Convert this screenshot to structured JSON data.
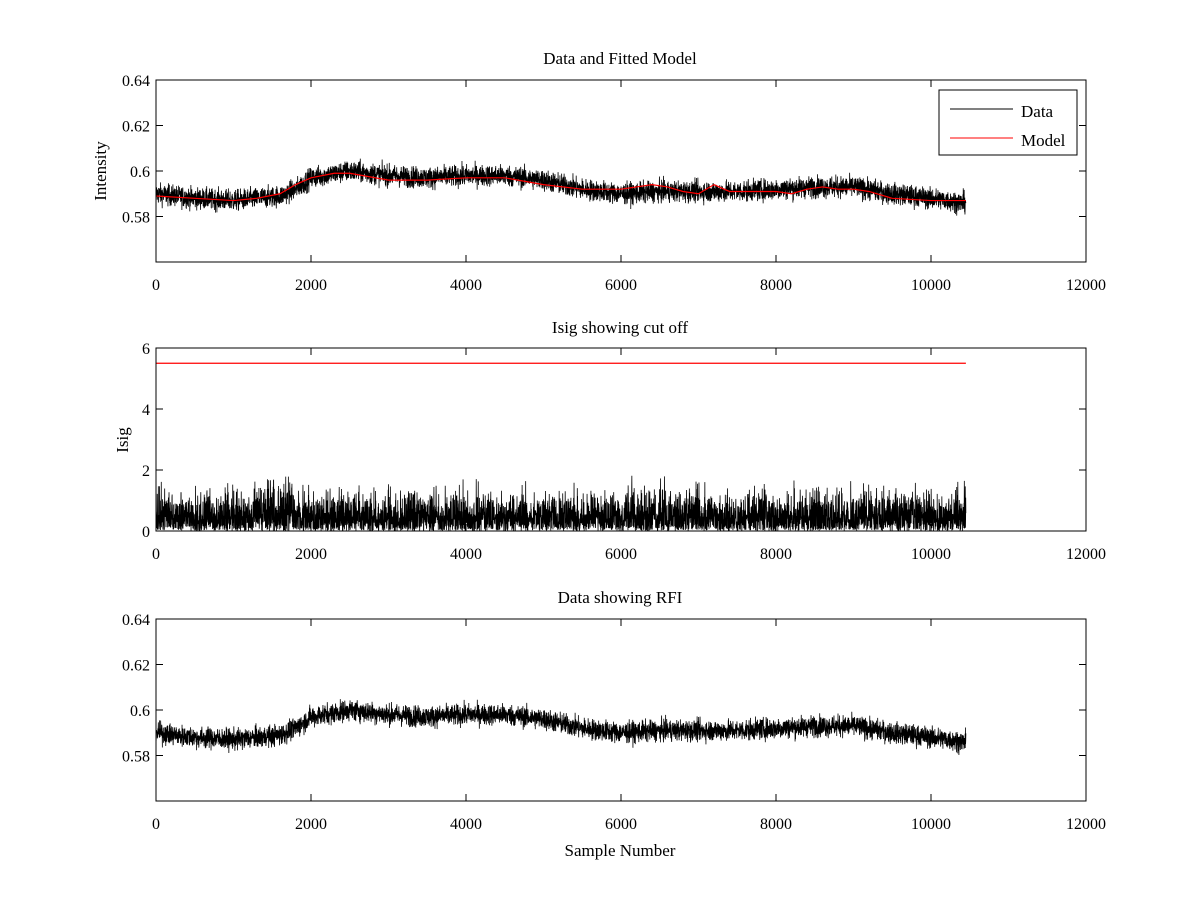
{
  "figure": {
    "background": "#ffffff",
    "line_color_data": "#000000",
    "line_color_model": "#ff0000"
  },
  "chart_data": [
    {
      "type": "line",
      "title": "Data and Fitted Model",
      "xlabel": "",
      "ylabel": "Intensity",
      "xlim": [
        0,
        12000
      ],
      "ylim": [
        0.56,
        0.64
      ],
      "xticks": [
        0,
        2000,
        4000,
        6000,
        8000,
        10000,
        12000
      ],
      "yticks": [
        0.58,
        0.6,
        0.62,
        0.64
      ],
      "x_tick_labels": [
        "0",
        "2000",
        "4000",
        "6000",
        "8000",
        "10000",
        "12000"
      ],
      "y_tick_labels": [
        "0.58",
        "0.6",
        "0.62",
        "0.64"
      ],
      "grid": false,
      "legend": {
        "position": "top-right",
        "entries": [
          "Data",
          "Model"
        ]
      },
      "n_samples": 10450,
      "series": [
        {
          "name": "Data",
          "color": "#000000",
          "kind": "noisy",
          "baseline_x": [
            0,
            500,
            1000,
            1300,
            1600,
            1800,
            2000,
            2500,
            3000,
            3500,
            4000,
            4500,
            5000,
            5500,
            6000,
            6500,
            7000,
            7500,
            8000,
            8500,
            9000,
            9500,
            10000,
            10450
          ],
          "baseline_y": [
            0.59,
            0.588,
            0.587,
            0.588,
            0.589,
            0.592,
            0.597,
            0.6,
            0.598,
            0.597,
            0.598,
            0.598,
            0.596,
            0.592,
            0.59,
            0.591,
            0.591,
            0.591,
            0.592,
            0.593,
            0.593,
            0.59,
            0.588,
            0.586
          ],
          "noise_amplitude": 0.0065
        },
        {
          "name": "Model",
          "color": "#ff0000",
          "kind": "smooth",
          "x": [
            0,
            500,
            1000,
            1300,
            1600,
            1800,
            2000,
            2300,
            2500,
            3000,
            3500,
            4000,
            4500,
            5000,
            5500,
            6000,
            6200,
            6400,
            6600,
            6800,
            7000,
            7200,
            7400,
            7600,
            8000,
            8200,
            8400,
            8600,
            8800,
            9000,
            9200,
            9500,
            10000,
            10450
          ],
          "y": [
            0.589,
            0.588,
            0.587,
            0.588,
            0.59,
            0.594,
            0.597,
            0.599,
            0.599,
            0.596,
            0.596,
            0.597,
            0.597,
            0.594,
            0.592,
            0.592,
            0.593,
            0.594,
            0.593,
            0.591,
            0.59,
            0.594,
            0.591,
            0.591,
            0.591,
            0.59,
            0.592,
            0.593,
            0.592,
            0.592,
            0.591,
            0.588,
            0.587,
            0.587
          ]
        }
      ]
    },
    {
      "type": "line",
      "title": "Isig showing cut off",
      "xlabel": "",
      "ylabel": "Isig",
      "xlim": [
        0,
        12000
      ],
      "ylim": [
        0,
        6
      ],
      "xticks": [
        0,
        2000,
        4000,
        6000,
        8000,
        10000,
        12000
      ],
      "yticks": [
        0,
        2,
        4,
        6
      ],
      "x_tick_labels": [
        "0",
        "2000",
        "4000",
        "6000",
        "8000",
        "10000",
        "12000"
      ],
      "y_tick_labels": [
        "0",
        "2",
        "4",
        "6"
      ],
      "grid": false,
      "n_samples": 10450,
      "series": [
        {
          "name": "Isig",
          "color": "#000000",
          "kind": "abs-noise",
          "scale": 0.85,
          "max": 3.8
        },
        {
          "name": "Cut off",
          "color": "#ff0000",
          "kind": "constant",
          "x": [
            0,
            10450
          ],
          "y": [
            5.5,
            5.5
          ]
        }
      ]
    },
    {
      "type": "line",
      "title": "Data showing RFI",
      "xlabel": "Sample Number",
      "ylabel": "",
      "xlim": [
        0,
        12000
      ],
      "ylim": [
        0.56,
        0.64
      ],
      "xticks": [
        0,
        2000,
        4000,
        6000,
        8000,
        10000,
        12000
      ],
      "yticks": [
        0.58,
        0.6,
        0.62,
        0.64
      ],
      "x_tick_labels": [
        "0",
        "2000",
        "4000",
        "6000",
        "8000",
        "10000",
        "12000"
      ],
      "y_tick_labels": [
        "0.58",
        "0.6",
        "0.62",
        "0.64"
      ],
      "grid": false,
      "n_samples": 10450,
      "series": [
        {
          "name": "Data",
          "color": "#000000",
          "kind": "noisy",
          "baseline_x": [
            0,
            500,
            1000,
            1300,
            1600,
            1800,
            2000,
            2500,
            3000,
            3500,
            4000,
            4500,
            5000,
            5500,
            6000,
            6500,
            7000,
            7500,
            8000,
            8500,
            9000,
            9500,
            10000,
            10450
          ],
          "baseline_y": [
            0.59,
            0.588,
            0.587,
            0.588,
            0.589,
            0.592,
            0.597,
            0.6,
            0.598,
            0.597,
            0.598,
            0.598,
            0.596,
            0.592,
            0.59,
            0.591,
            0.591,
            0.591,
            0.592,
            0.593,
            0.593,
            0.59,
            0.588,
            0.586
          ],
          "noise_amplitude": 0.0065
        }
      ]
    }
  ]
}
